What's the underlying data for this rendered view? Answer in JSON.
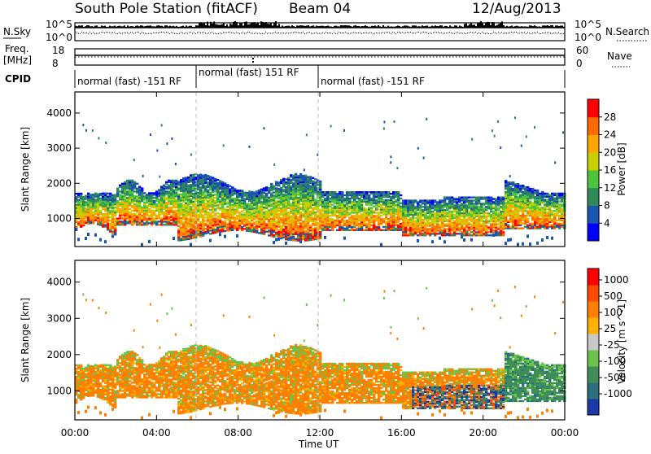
{
  "header": {
    "station": "South Pole Station (fitACF)",
    "beam": "Beam 04",
    "date": "12/Aug/2013"
  },
  "summary_panels": {
    "nsky_label": "N.Sky",
    "nsky_ticks": [
      "10^5",
      "10^0"
    ],
    "nsearch_label": "N.Search",
    "nsearch_ticks": [
      "10^5",
      "10^0"
    ],
    "freq_label_1": "Freq.",
    "freq_label_2": "[MHz]",
    "freq_ticks": [
      "18",
      "8"
    ],
    "nave_label": "Nave",
    "nave_ticks": [
      "60",
      "0"
    ],
    "cpid_label": "CPID",
    "cpid_segments": [
      {
        "label": "normal (fast) -151 RF",
        "start": 0,
        "end": 6
      },
      {
        "label": "normal (fast) 151 RF",
        "start": 6,
        "end": 12
      },
      {
        "label": "normal (fast) -151 RF",
        "start": 12,
        "end": 24
      }
    ]
  },
  "chart_data": [
    {
      "type": "heatmap",
      "name": "power",
      "ylabel": "Slant Range [km]",
      "ylim": [
        200,
        4600
      ],
      "y_ticks": [
        1000,
        2000,
        3000,
        4000
      ],
      "xlim": [
        0,
        24
      ],
      "colorbar_label": "Power [dB]",
      "colorbar_ticks": [
        "28",
        "24",
        "20",
        "16",
        "12",
        "8",
        "4"
      ],
      "colors": [
        "#0000ff",
        "#1a55b0",
        "#2f8a57",
        "#4cc43d",
        "#c8d000",
        "#ffa500",
        "#ff6a00",
        "#ff0000"
      ],
      "dashed_lines_ut": [
        6,
        12
      ]
    },
    {
      "type": "heatmap",
      "name": "velocity",
      "ylabel": "Slant Range [km]",
      "ylim": [
        200,
        4600
      ],
      "y_ticks": [
        1000,
        2000,
        3000,
        4000
      ],
      "xlim": [
        0,
        24
      ],
      "xlabel": "Time UT",
      "x_ticks": [
        "00:00",
        "04:00",
        "08:00",
        "12:00",
        "16:00",
        "20:00",
        "00:00"
      ],
      "colorbar_label": "Velocity [m s^-1]",
      "colorbar_ticks": [
        "1000",
        "500",
        "100",
        "25",
        "-25",
        "-100",
        "-500",
        "-1000"
      ],
      "colors": [
        "#1a3aa8",
        "#2c6f7e",
        "#3f8e5a",
        "#6ac44a",
        "#c8c8c8",
        "#ffb000",
        "#ff8000",
        "#ff4a00",
        "#ff0000"
      ],
      "dashed_lines_ut": [
        6,
        12
      ]
    }
  ]
}
